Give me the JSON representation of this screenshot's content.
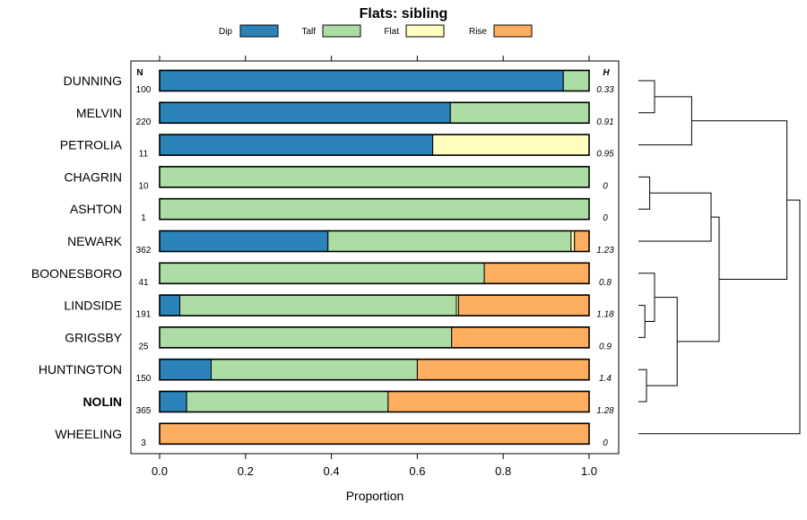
{
  "chart_data": {
    "type": "bar",
    "orientation": "horizontal",
    "stacked": true,
    "title": "Flats: sibling",
    "xlabel": "Proportion",
    "xlim": [
      0,
      1
    ],
    "xticks": [
      "0.0",
      "0.2",
      "0.4",
      "0.6",
      "0.8",
      "1.0"
    ],
    "n_header": "N",
    "h_header": "H",
    "legend": [
      {
        "label": "Dip",
        "color": "#2b83ba"
      },
      {
        "label": "Talf",
        "color": "#abdda4"
      },
      {
        "label": "Flat",
        "color": "#ffffbf"
      },
      {
        "label": "Rise",
        "color": "#fdae61"
      }
    ],
    "categories": [
      "DUNNING",
      "MELVIN",
      "PETROLIA",
      "CHAGRIN",
      "ASHTON",
      "NEWARK",
      "BOONESBORO",
      "LINDSIDE",
      "GRIGSBY",
      "HUNTINGTON",
      "NOLIN",
      "WHEELING"
    ],
    "bold_category": "NOLIN",
    "n": [
      "100",
      "220",
      "11",
      "10",
      "1",
      "362",
      "41",
      "191",
      "25",
      "150",
      "365",
      "3"
    ],
    "h": [
      "0.33",
      "0.91",
      "0.95",
      "0",
      "0",
      "1.23",
      "0.8",
      "1.18",
      "0.9",
      "1.4",
      "1.28",
      "0"
    ],
    "series": [
      {
        "name": "Dip",
        "values": [
          0.94,
          0.677,
          0.636,
          0,
          0,
          0.392,
          0,
          0.047,
          0,
          0.12,
          0.063,
          0
        ]
      },
      {
        "name": "Talf",
        "values": [
          0.06,
          0.323,
          0,
          1,
          1,
          0.566,
          0.756,
          0.644,
          0.68,
          0.48,
          0.469,
          0
        ]
      },
      {
        "name": "Flat",
        "values": [
          0,
          0,
          0.364,
          0,
          0,
          0.008,
          0,
          0.005,
          0,
          0,
          0,
          0
        ]
      },
      {
        "name": "Rise",
        "values": [
          0,
          0,
          0,
          0,
          0,
          0.034,
          0.244,
          0.304,
          0.32,
          0.4,
          0.468,
          1
        ]
      }
    ],
    "dendrogram": {
      "merges": [
        [
          0,
          1,
          0.1
        ],
        [
          -1,
          2,
          0.33
        ],
        [
          3,
          4,
          0.07
        ],
        [
          -3,
          5,
          0.45
        ],
        [
          7,
          8,
          0.04
        ],
        [
          6,
          -5,
          0.1
        ],
        [
          9,
          10,
          0.05
        ],
        [
          -6,
          -7,
          0.24
        ],
        [
          -4,
          -8,
          0.5
        ],
        [
          -2,
          -9,
          0.92
        ],
        [
          -10,
          11,
          1.0
        ]
      ]
    }
  }
}
